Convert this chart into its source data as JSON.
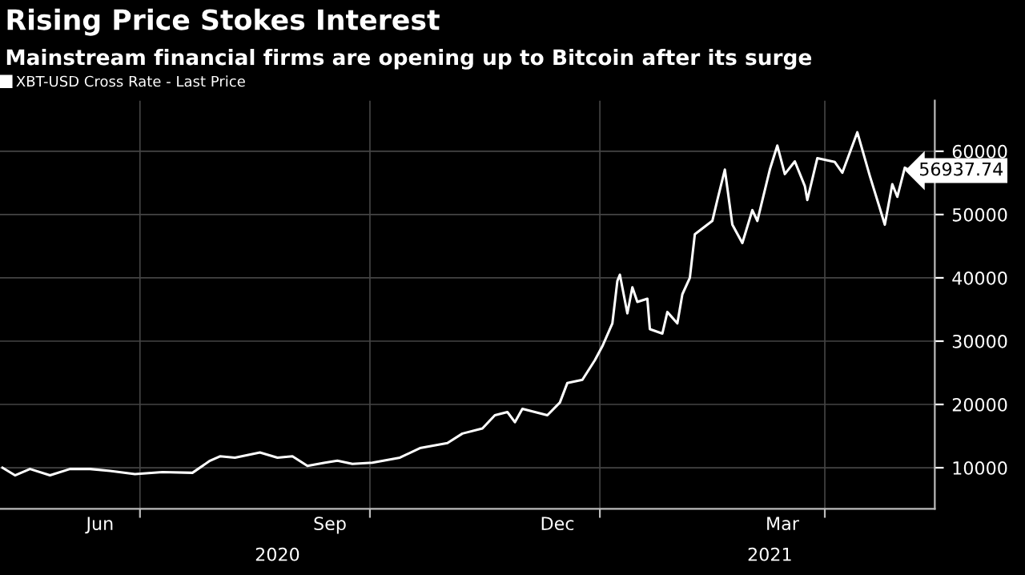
{
  "chart_data": {
    "type": "line",
    "title": "Rising Price Stokes Interest",
    "subtitle": "Mainstream financial firms are opening up to Bitcoin after its surge",
    "x": [
      "2020-05-07",
      "2020-05-12",
      "2020-05-18",
      "2020-05-26",
      "2020-06-03",
      "2020-06-11",
      "2020-06-19",
      "2020-06-29",
      "2020-07-10",
      "2020-07-22",
      "2020-07-29",
      "2020-08-02",
      "2020-08-08",
      "2020-08-18",
      "2020-08-25",
      "2020-08-31",
      "2020-09-06",
      "2020-09-13",
      "2020-09-18",
      "2020-09-24",
      "2020-10-02",
      "2020-10-13",
      "2020-10-21",
      "2020-11-01",
      "2020-11-07",
      "2020-11-15",
      "2020-11-20",
      "2020-11-25",
      "2020-11-28",
      "2020-12-01",
      "2020-12-11",
      "2020-12-16",
      "2020-12-19",
      "2020-12-25",
      "2020-12-30",
      "2021-01-02",
      "2021-01-06",
      "2021-01-08",
      "2021-01-09",
      "2021-01-12",
      "2021-01-14",
      "2021-01-16",
      "2021-01-20",
      "2021-01-21",
      "2021-01-26",
      "2021-01-28",
      "2021-02-01",
      "2021-02-03",
      "2021-02-06",
      "2021-02-08",
      "2021-02-15",
      "2021-02-17",
      "2021-02-20",
      "2021-02-23",
      "2021-02-27",
      "2021-03-03",
      "2021-03-05",
      "2021-03-10",
      "2021-03-13",
      "2021-03-16",
      "2021-03-20",
      "2021-03-24",
      "2021-03-25",
      "2021-03-29",
      "2021-04-05",
      "2021-04-08",
      "2021-04-14",
      "2021-04-19",
      "2021-04-23",
      "2021-04-25",
      "2021-04-28",
      "2021-04-30",
      "2021-05-03",
      "2021-05-05"
    ],
    "series": [
      {
        "name": "XBT-USD Cross Rate - Last Price",
        "color": "#ffffff",
        "values": [
          10000,
          8800,
          9800,
          8800,
          9800,
          9800,
          9500,
          9000,
          9300,
          9200,
          11100,
          11800,
          11600,
          12400,
          11600,
          11800,
          10300,
          10800,
          11100,
          10600,
          10800,
          11600,
          13100,
          13900,
          15400,
          16200,
          18300,
          18800,
          17200,
          19300,
          18300,
          20300,
          23400,
          23900,
          27000,
          29200,
          32800,
          39500,
          40500,
          34400,
          38500,
          36200,
          36700,
          31900,
          31200,
          34600,
          32800,
          37400,
          40000,
          46900,
          49000,
          52300,
          57100,
          48400,
          45500,
          50700,
          49000,
          57100,
          60900,
          56400,
          58400,
          54500,
          52300,
          58900,
          58300,
          56600,
          63000,
          56100,
          51000,
          48400,
          54800,
          52800,
          57400,
          56937.74
        ]
      }
    ],
    "xlim": [
      "2020-05-06",
      "2021-05-15"
    ],
    "xticks": [
      {
        "value": "2020-06-15",
        "label": "Jun"
      },
      {
        "value": "2020-09-15",
        "label": "Sep"
      },
      {
        "value": "2020-12-15",
        "label": "Dec"
      },
      {
        "value": "2021-03-15",
        "label": "Mar"
      },
      {
        "value": "2020-07-01",
        "label": null
      },
      {
        "value": "2020-10-01",
        "label": null
      },
      {
        "value": "2021-01-01",
        "label": null
      },
      {
        "value": "2021-04-01",
        "label": null
      }
    ],
    "x2lim": [
      "2020-05-06",
      "2021-05-15"
    ],
    "x2ticks": [
      {
        "value": "2020-08-25",
        "label": "2020"
      },
      {
        "value": "2021-03-10",
        "label": "2021"
      }
    ],
    "ylim": [
      3500,
      68000
    ],
    "yticks": [
      10000,
      20000,
      30000,
      40000,
      50000,
      60000
    ],
    "grid": true,
    "legend": "top left",
    "annotations": [
      {
        "text": "56937.74",
        "x": "2021-05-05",
        "y": 56937.74
      }
    ]
  }
}
